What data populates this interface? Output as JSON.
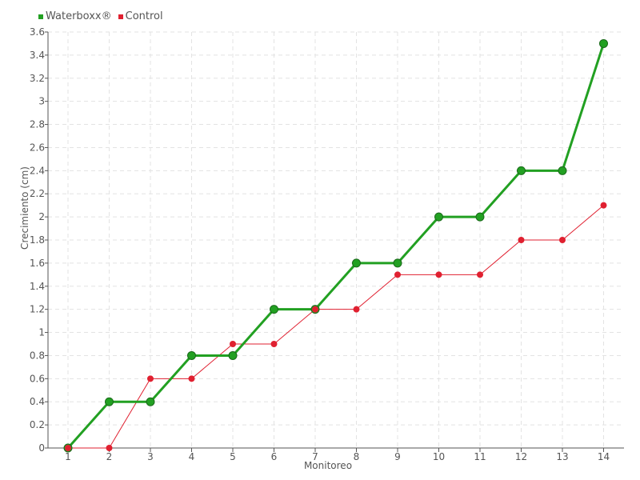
{
  "chart_data": {
    "type": "line",
    "xlabel": "Monitoreo",
    "ylabel": "Crecimiento (cm)",
    "categories": [
      "1",
      "2",
      "3",
      "4",
      "5",
      "6",
      "7",
      "8",
      "9",
      "10",
      "11",
      "12",
      "13",
      "14"
    ],
    "y_ticks": [
      "0",
      "0.2",
      "0.4",
      "0.6",
      "0.8",
      "1",
      "1.2",
      "1.4",
      "1.6",
      "1.8",
      "2",
      "2.2",
      "2.4",
      "2.6",
      "2.8",
      "3",
      "3.2",
      "3.4",
      "3.6"
    ],
    "ylim": [
      0,
      3.6
    ],
    "grid": true,
    "legend_position": "top-left",
    "series": [
      {
        "name": "Waterboxx®",
        "color": "#22a022",
        "values": [
          0,
          0.4,
          0.4,
          0.8,
          0.8,
          1.2,
          1.2,
          1.6,
          1.6,
          2.0,
          2.0,
          2.4,
          2.4,
          3.5
        ]
      },
      {
        "name": "Control",
        "color": "#e02030",
        "values": [
          0,
          0,
          0.6,
          0.6,
          0.9,
          0.9,
          1.2,
          1.2,
          1.5,
          1.5,
          1.5,
          1.8,
          1.8,
          2.1
        ]
      }
    ]
  }
}
